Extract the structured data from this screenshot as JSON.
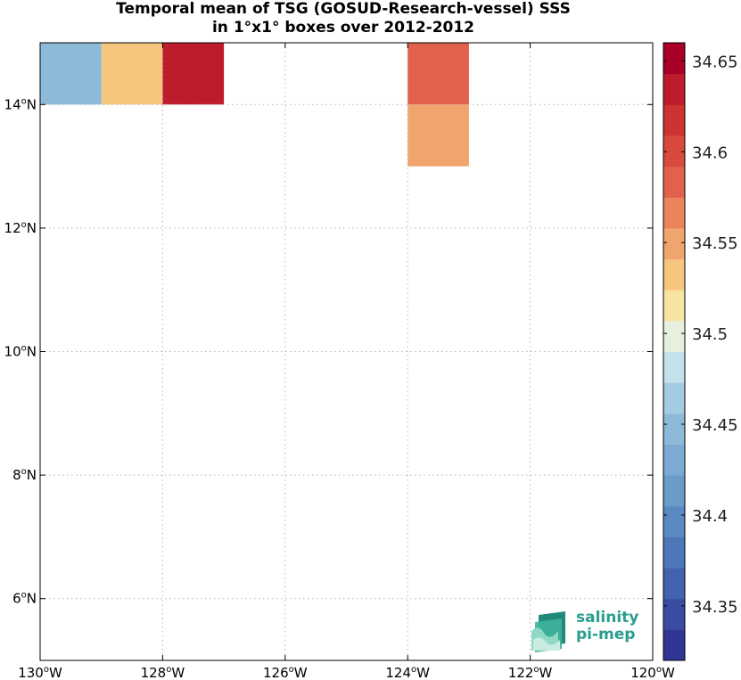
{
  "chart_data": {
    "type": "heatmap",
    "title_lines": [
      "Temporal mean of TSG (GOSUD-Research-vessel) SSS",
      "in 1°x1° boxes over 2012-2012"
    ],
    "xlim": [
      -130,
      -120
    ],
    "ylim": [
      5,
      15
    ],
    "x_ticks": [
      {
        "value": -130,
        "label": "130",
        "suffix": "W"
      },
      {
        "value": -128,
        "label": "128",
        "suffix": "W"
      },
      {
        "value": -126,
        "label": "126",
        "suffix": "W"
      },
      {
        "value": -124,
        "label": "124",
        "suffix": "W"
      },
      {
        "value": -122,
        "label": "122",
        "suffix": "W"
      },
      {
        "value": -120,
        "label": "120",
        "suffix": "W"
      }
    ],
    "y_ticks": [
      {
        "value": 6,
        "label": "6",
        "suffix": "N"
      },
      {
        "value": 8,
        "label": "8",
        "suffix": "N"
      },
      {
        "value": 10,
        "label": "10",
        "suffix": "N"
      },
      {
        "value": 12,
        "label": "12",
        "suffix": "N"
      },
      {
        "value": 14,
        "label": "14",
        "suffix": "N"
      }
    ],
    "grid": true,
    "cells": [
      {
        "lon": -130,
        "lat": 14,
        "value": 34.44
      },
      {
        "lon": -129,
        "lat": 14,
        "value": 34.525
      },
      {
        "lon": -128,
        "lat": 14,
        "value": 34.64
      },
      {
        "lon": -124,
        "lat": 14,
        "value": 34.585
      },
      {
        "lon": -124,
        "lat": 13,
        "value": 34.555
      }
    ],
    "colorbar": {
      "min": 34.32,
      "max": 34.66,
      "ticks": [
        {
          "value": 34.35,
          "label": "34.35"
        },
        {
          "value": 34.4,
          "label": "34.4"
        },
        {
          "value": 34.45,
          "label": "34.45"
        },
        {
          "value": 34.5,
          "label": "34.5"
        },
        {
          "value": 34.55,
          "label": "34.55"
        },
        {
          "value": 34.6,
          "label": "34.6"
        },
        {
          "value": 34.65,
          "label": "34.65"
        }
      ],
      "colors": [
        "#313695",
        "#3a4da3",
        "#4463ae",
        "#4d77b8",
        "#5a8ac1",
        "#6a9bc9",
        "#7baad2",
        "#8dbad9",
        "#a3cbe2",
        "#c3e2ec",
        "#e7f0df",
        "#f7e4a1",
        "#f6c57e",
        "#f1a56e",
        "#ea845d",
        "#e1614d",
        "#d94a3d",
        "#cd3331",
        "#bd1c2c",
        "#a80026"
      ]
    }
  },
  "logo": {
    "line1": "salinity",
    "line2": "pi-mep"
  }
}
